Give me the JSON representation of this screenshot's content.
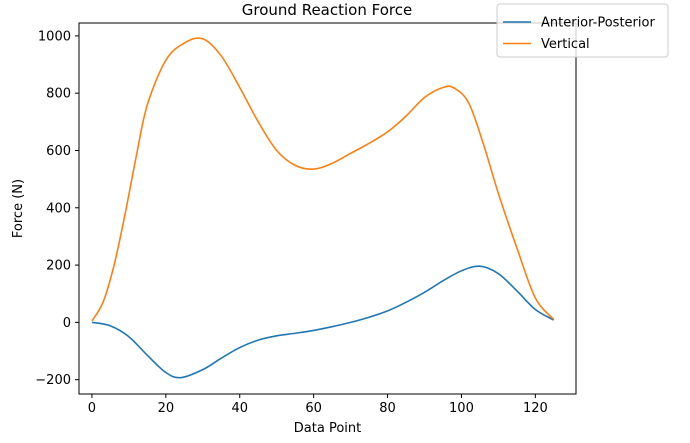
{
  "chart_data": {
    "type": "line",
    "title": "Ground Reaction Force",
    "xlabel": "Data Point",
    "ylabel": "Force (N)",
    "xlim": [
      -3.5,
      131
    ],
    "ylim": [
      -250,
      1045
    ],
    "xticks": [
      0,
      20,
      40,
      60,
      80,
      100,
      120
    ],
    "yticks": [
      -200,
      0,
      200,
      400,
      600,
      800,
      1000
    ],
    "xtick_labels": [
      "0",
      "20",
      "40",
      "60",
      "80",
      "100",
      "120"
    ],
    "ytick_labels": [
      "−200",
      "0",
      "200",
      "400",
      "600",
      "800",
      "1000"
    ],
    "grid": false,
    "legend_position": "top-right",
    "series": [
      {
        "name": "Anterior-Posterior",
        "color": "#1f77b4",
        "x": [
          0,
          5,
          10,
          15,
          20,
          24,
          30,
          35,
          40,
          45,
          50,
          55,
          60,
          65,
          70,
          75,
          80,
          85,
          90,
          95,
          100,
          105,
          110,
          115,
          120,
          125
        ],
        "y": [
          0,
          -12,
          -50,
          -115,
          -175,
          -193,
          -165,
          -125,
          -88,
          -62,
          -47,
          -38,
          -28,
          -15,
          0,
          18,
          40,
          70,
          105,
          145,
          180,
          196,
          170,
          110,
          45,
          8
        ]
      },
      {
        "name": "Vertical",
        "color": "#ff7f0e",
        "x": [
          0,
          3,
          6,
          9,
          12,
          15,
          20,
          25,
          30,
          35,
          40,
          45,
          50,
          55,
          60,
          65,
          70,
          75,
          80,
          85,
          90,
          95,
          98,
          102,
          106,
          110,
          115,
          120,
          125
        ],
        "y": [
          5,
          70,
          200,
          380,
          580,
          760,
          915,
          975,
          990,
          930,
          820,
          700,
          600,
          548,
          535,
          555,
          590,
          625,
          665,
          720,
          785,
          820,
          818,
          765,
          620,
          450,
          260,
          85,
          10
        ]
      }
    ]
  }
}
